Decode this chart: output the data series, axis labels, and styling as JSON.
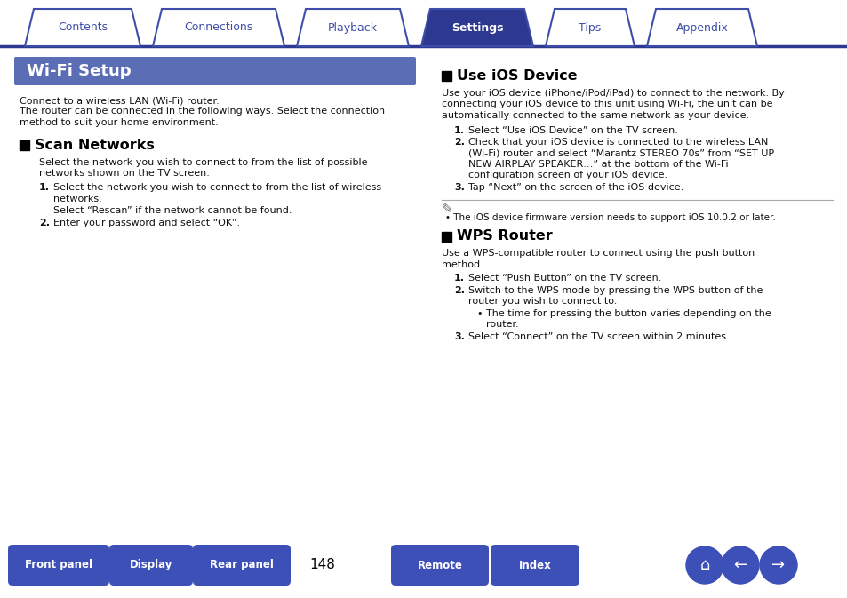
{
  "bg_color": "#ffffff",
  "tab_labels": [
    "Contents",
    "Connections",
    "Playback",
    "Settings",
    "Tips",
    "Appendix"
  ],
  "tab_active_index": 3,
  "tab_color_inactive": "#ffffff",
  "tab_color_active": "#2d3890",
  "tab_border_color": "#3d4eaa",
  "tab_text_color_inactive": "#3d4eaa",
  "tab_text_color_active": "#ffffff",
  "header_bg": "#5b6db5",
  "header_text": "Wi-Fi Setup",
  "header_text_color": "#ffffff",
  "body_text_color": "#111111",
  "section_title_color": "#000000",
  "bottom_btn_color": "#3d50b8",
  "bottom_btn_labels": [
    "Front panel",
    "Display",
    "Rear panel",
    "Remote",
    "Index"
  ],
  "page_number": "148",
  "left_col_intro_line1": "Connect to a wireless LAN (Wi-Fi) router.",
  "left_col_intro_line2": "The router can be connected in the following ways. Select the connection",
  "left_col_intro_line3": "method to suit your home environment.",
  "scan_title": "Scan Networks",
  "scan_intro_line1": "Select the network you wish to connect to from the list of possible",
  "scan_intro_line2": "networks shown on the TV screen.",
  "scan_item1_line1": "Select the network you wish to connect to from the list of wireless",
  "scan_item1_line2": "networks.",
  "scan_item1_line3": "Select “Rescan” if the network cannot be found.",
  "scan_item2": "Enter your password and select “OK”.",
  "ios_title": "Use iOS Device",
  "ios_intro_line1": "Use your iOS device (iPhone/iPod/iPad) to connect to the network. By",
  "ios_intro_line2": "connecting your iOS device to this unit using Wi-Fi, the unit can be",
  "ios_intro_line3": "automatically connected to the same network as your device.",
  "ios_item1": "Select “Use iOS Device” on the TV screen.",
  "ios_item2_line1": "Check that your iOS device is connected to the wireless LAN",
  "ios_item2_line2": "(Wi-Fi) router and select “Marantz STEREO 70s” from “SET UP",
  "ios_item2_line3": "NEW AIRPLAY SPEAKER…” at the bottom of the Wi-Fi",
  "ios_item2_line4": "configuration screen of your iOS device.",
  "ios_item3": "Tap “Next” on the screen of the iOS device.",
  "ios_note": "The iOS device firmware version needs to support iOS 10.0.2 or later.",
  "wps_title": "WPS Router",
  "wps_intro_line1": "Use a WPS-compatible router to connect using the push button",
  "wps_intro_line2": "method.",
  "wps_item1": "Select “Push Button” on the TV screen.",
  "wps_item2_line1": "Switch to the WPS mode by pressing the WPS button of the",
  "wps_item2_line2": "router you wish to connect to.",
  "wps_item2_bullet": "The time for pressing the button varies depending on the",
  "wps_item2_bullet2": "router.",
  "wps_item3": "Select “Connect” on the TV screen within 2 minutes."
}
